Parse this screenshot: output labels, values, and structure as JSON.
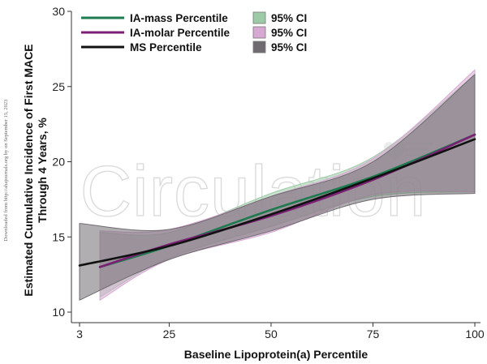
{
  "chart_data": {
    "type": "line",
    "title": "",
    "xlabel": "Baseline Lipoprotein(a) Percentile",
    "ylabel": [
      "Estimated Cumulative Incidence of First MACE",
      "Through 4 Years, %"
    ],
    "xlim": [
      3,
      100
    ],
    "ylim": [
      10,
      30
    ],
    "x_ticks": [
      3,
      25,
      50,
      75,
      100
    ],
    "y_ticks": [
      10,
      15,
      20,
      25,
      30
    ],
    "grid": false,
    "legend_position": "top-left",
    "watermark": "Circulation",
    "side_note": "Downloaded from http://ahajournals.org by on September 15, 2023",
    "series": [
      {
        "name": "IA-mass Percentile",
        "ci_label": "95% CI",
        "color": "#1e7a4f",
        "ci_color": "#9ccaa6",
        "x": [
          8,
          25,
          50,
          75,
          100
        ],
        "y": [
          13.0,
          14.4,
          16.8,
          19.0,
          21.8
        ],
        "ci_lower": [
          11.0,
          13.6,
          15.7,
          17.7,
          18.0
        ],
        "ci_upper": [
          15.3,
          15.3,
          17.9,
          20.3,
          25.8
        ]
      },
      {
        "name": "IA-molar Percentile",
        "ci_label": "95% CI",
        "color": "#7b1f74",
        "ci_color": "#d7a8d2",
        "x": [
          8,
          25,
          50,
          75,
          100
        ],
        "y": [
          13.0,
          14.5,
          16.4,
          18.8,
          21.8
        ],
        "ci_lower": [
          10.8,
          13.5,
          15.3,
          17.8,
          18.0
        ],
        "ci_upper": [
          15.4,
          15.5,
          17.7,
          20.2,
          26.1
        ]
      },
      {
        "name": "MS Percentile",
        "ci_label": "95% CI",
        "color": "#111111",
        "ci_color": "#6f6b70",
        "x": [
          3,
          25,
          50,
          75,
          100
        ],
        "y": [
          13.1,
          14.4,
          16.5,
          18.9,
          21.5
        ],
        "ci_lower": [
          10.8,
          13.5,
          15.4,
          17.5,
          17.9
        ],
        "ci_upper": [
          15.9,
          15.5,
          17.7,
          20.0,
          25.8
        ]
      }
    ]
  }
}
